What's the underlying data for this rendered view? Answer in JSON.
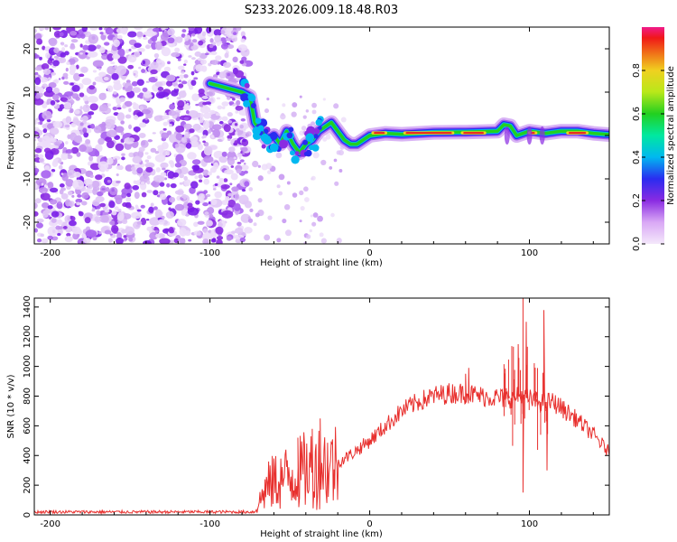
{
  "title": "S233.2026.009.18.48.R03",
  "colors": {
    "snr_line": "#e8302e",
    "frame": "#000000",
    "background": "#ffffff"
  },
  "chart_data": [
    {
      "type": "heatmap",
      "name": "spectrogram",
      "xlabel": "Height of straight line (km)",
      "ylabel": "Frequency (Hz)",
      "xlim": [
        -210,
        150
      ],
      "ylim": [
        -25,
        25
      ],
      "xticks": [
        -200,
        -100,
        0,
        100
      ],
      "yticks": [
        -20,
        -10,
        0,
        10,
        20
      ],
      "description_of_signal": "noise region from -210 to -75 km; tone near 10 Hz around -100 to -75 km; tone near 0 Hz from -75 to 150 km",
      "colorbar": {
        "label": "Normalized spectral amplitude",
        "range": [
          0.0,
          1.0
        ],
        "ticks": [
          0.0,
          0.2,
          0.4,
          0.6,
          0.8
        ],
        "tick_labels": [
          "0.0",
          "0.2",
          "0.4",
          "0.6",
          "0.8"
        ]
      },
      "trace": {
        "x": [
          -100,
          -95,
          -90,
          -85,
          -80,
          -75,
          -72,
          -68,
          -64,
          -60,
          -56,
          -52,
          -48,
          -44,
          -40,
          -36,
          -32,
          -28,
          -24,
          -20,
          -16,
          -12,
          -8,
          -4,
          0,
          10,
          20,
          40,
          60,
          80,
          84,
          88,
          92,
          100,
          110,
          120,
          130,
          140,
          150
        ],
        "y": [
          12,
          11.5,
          11,
          10.5,
          10,
          9,
          3,
          1,
          -1,
          0,
          -2,
          1,
          -2,
          -4,
          -2,
          -1,
          1,
          2,
          3,
          1,
          -1,
          -2,
          -2,
          -1,
          0,
          0.5,
          0.3,
          0.7,
          0.8,
          1,
          2.5,
          2.2,
          0,
          1,
          0.5,
          1,
          1,
          0.5,
          0.2
        ]
      }
    },
    {
      "type": "line",
      "name": "snr",
      "xlabel": "Height of straight line (km)",
      "ylabel": "SNR (10 * v/v)",
      "xlim": [
        -210,
        150
      ],
      "ylim": [
        0,
        1460
      ],
      "xticks": [
        -200,
        -100,
        0,
        100
      ],
      "yticks": [
        0,
        200,
        400,
        600,
        800,
        1000,
        1200,
        1400
      ],
      "envelope": {
        "x": [
          -210,
          -150,
          -100,
          -72,
          -65,
          -60,
          -55,
          -50,
          -45,
          -40,
          -35,
          -30,
          -25,
          -20,
          -10,
          0,
          10,
          20,
          30,
          40,
          50,
          60,
          70,
          80,
          85,
          90,
          95,
          100,
          105,
          110,
          115,
          120,
          130,
          140,
          150
        ],
        "y": [
          20,
          20,
          20,
          20,
          180,
          220,
          240,
          260,
          280,
          300,
          320,
          340,
          330,
          350,
          420,
          500,
          600,
          700,
          760,
          800,
          820,
          820,
          800,
          790,
          780,
          790,
          800,
          780,
          760,
          760,
          760,
          720,
          640,
          540,
          420
        ]
      },
      "spikes": [
        {
          "x": -60,
          "y": 380
        },
        {
          "x": -45,
          "y": 520
        },
        {
          "x": -36,
          "y": 580
        },
        {
          "x": -31,
          "y": 650
        },
        {
          "x": 60,
          "y": 950
        },
        {
          "x": 62,
          "y": 990
        },
        {
          "x": 93,
          "y": 1150
        },
        {
          "x": 96,
          "y": 1460
        },
        {
          "x": 96,
          "y": 150
        },
        {
          "x": 98,
          "y": 1300
        },
        {
          "x": 109,
          "y": 1380
        },
        {
          "x": 111,
          "y": 300
        }
      ]
    }
  ]
}
